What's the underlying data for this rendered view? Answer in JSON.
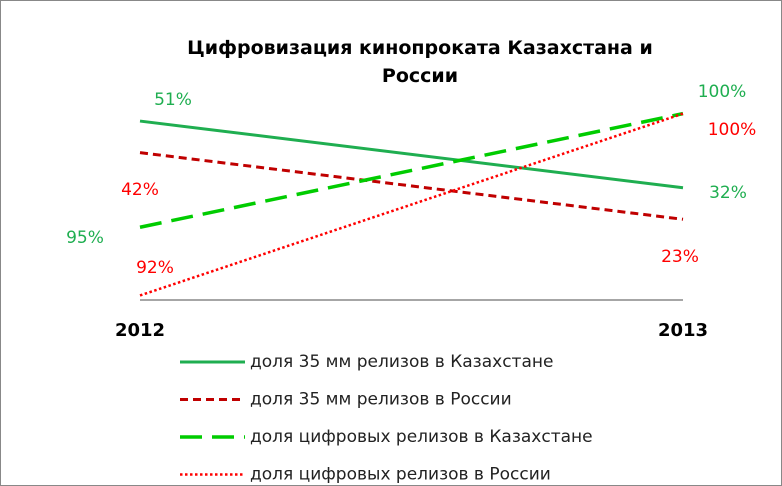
{
  "chart_data": {
    "type": "line",
    "title": "Цифровизация кинопроката Казахстана и России",
    "categories": [
      "2012",
      "2013"
    ],
    "ylim": [
      0,
      57
    ],
    "y2lim": [
      91.8,
      100.6
    ],
    "series": [
      {
        "name": "доля 35 мм релизов в Казахстане",
        "color": "#1fae50",
        "dash": "solid",
        "values": [
          51,
          32
        ],
        "value_labels": [
          "51%",
          "32%"
        ]
      },
      {
        "name": "доля 35 мм релизов в России",
        "color": "#c00000",
        "dash": "dashed",
        "values": [
          42,
          23
        ],
        "value_labels": [
          "42%",
          "23%"
        ]
      },
      {
        "name": "доля цифровых релизов в Казахстане",
        "color": "#00cc00",
        "dash": "long-dash",
        "axis": "y2",
        "values": [
          95,
          100
        ],
        "value_labels": [
          "95%",
          "100%"
        ]
      },
      {
        "name": "доля цифровых релизов в России",
        "color": "#ff0000",
        "dash": "dotted",
        "axis": "y2",
        "values": [
          92,
          100
        ],
        "value_labels": [
          "92%",
          "100%"
        ]
      }
    ]
  }
}
